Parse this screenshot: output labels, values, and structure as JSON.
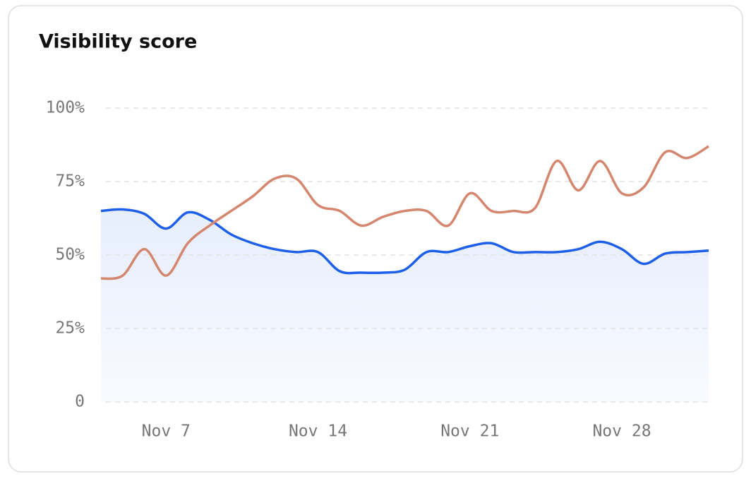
{
  "chart_data": {
    "type": "line",
    "title": "Visibility score",
    "categories": [
      null,
      null,
      null,
      "Nov 7",
      null,
      null,
      null,
      null,
      null,
      null,
      "Nov 14",
      null,
      null,
      null,
      null,
      null,
      null,
      "Nov 21",
      null,
      null,
      null,
      null,
      null,
      null,
      "Nov 28",
      null,
      null,
      null,
      null
    ],
    "series": [
      {
        "color": "#1d5fe8",
        "area": true,
        "values": [
          65,
          65.5,
          64,
          59,
          64.5,
          62,
          57,
          54,
          52,
          51,
          51,
          44.5,
          44,
          44,
          45,
          51,
          51,
          53,
          54,
          51,
          51,
          51,
          52,
          54.5,
          52,
          47,
          50.5,
          51,
          51.5
        ]
      },
      {
        "color": "#d4866f",
        "values": [
          42,
          43,
          52,
          43,
          54,
          60,
          65,
          70,
          76,
          76,
          67,
          65,
          60,
          63,
          65,
          65,
          60,
          71,
          65,
          65,
          66,
          82,
          72,
          82,
          71,
          73,
          85,
          83,
          87
        ]
      }
    ],
    "ylim": [
      0,
      100
    ],
    "yticks": [
      0,
      {
        "value": 25,
        "label": "25%"
      },
      {
        "value": 50,
        "label": "50%"
      },
      {
        "value": 75,
        "label": "75%"
      },
      {
        "value": 100,
        "label": "100%"
      }
    ],
    "grid": true
  }
}
